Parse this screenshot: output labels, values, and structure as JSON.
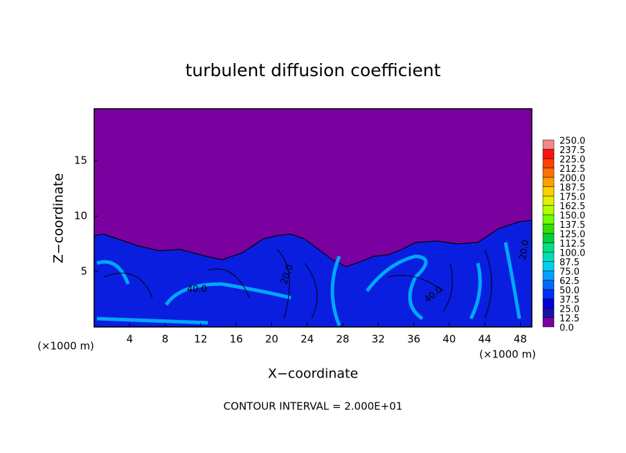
{
  "chart_data": {
    "type": "contour",
    "title": "turbulent diffusion coefficient",
    "x_label": "X−coordinate",
    "y_label": "Z−coordinate",
    "x_unit": "(×1000 m)",
    "y_unit": "(×1000 m)",
    "footer": "CONTOUR INTERVAL = 2.000E+01",
    "xlim": [
      0,
      49.3
    ],
    "ylim": [
      0,
      19.7
    ],
    "xticks": [
      4,
      8,
      12,
      16,
      20,
      24,
      28,
      32,
      36,
      40,
      44,
      48
    ],
    "yticks": [
      5,
      10,
      15
    ],
    "contour_labels": [
      "40.0",
      "20.0",
      "40.0",
      "20.0"
    ],
    "colorbar": {
      "levels": [
        {
          "value": 0,
          "label": "0.0"
        },
        12.5,
        {
          "value": 25,
          "label": "25.0"
        },
        37.5,
        {
          "value": 50,
          "label": "50.0"
        },
        62.5,
        {
          "value": 75,
          "label": "75.0"
        },
        87.5,
        {
          "value": 100,
          "label": "100.0"
        },
        112.5,
        {
          "value": 125,
          "label": "125.0"
        },
        137.5,
        {
          "value": 150,
          "label": "150.0"
        },
        162.5,
        {
          "value": 175,
          "label": "175.0"
        },
        187.5,
        {
          "value": 200,
          "label": "200.0"
        },
        212.5,
        {
          "value": 225,
          "label": "225.0"
        },
        237.5,
        {
          "value": 250,
          "label": "250.0"
        }
      ],
      "colors": [
        "#7a00a0",
        "#1a10a8",
        "#0000d8",
        "#0030ff",
        "#0068ff",
        "#00a0ff",
        "#00d0f0",
        "#00e0b8",
        "#00e080",
        "#00d040",
        "#30e000",
        "#70ff00",
        "#b0ff00",
        "#e0f000",
        "#ffd000",
        "#ffa000",
        "#ff7000",
        "#ff4000",
        "#ff1010",
        "#f08888"
      ]
    }
  }
}
